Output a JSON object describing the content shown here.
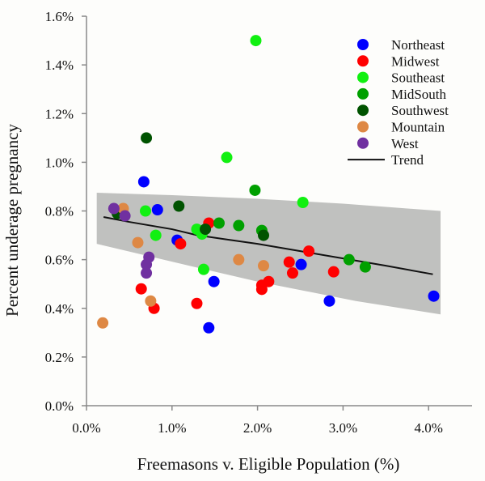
{
  "chart_data": {
    "type": "scatter",
    "title": "",
    "xlabel": "Freemasons v. Eligible Population (%)",
    "ylabel": "Percent underage pregnancy",
    "xlim": [
      0,
      4.4
    ],
    "ylim": [
      0,
      1.6
    ],
    "x_ticks": [
      0,
      1,
      2,
      3,
      4
    ],
    "x_tick_labels": [
      "0.0%",
      "1.0%",
      "2.0%",
      "3.0%",
      "4.0%"
    ],
    "y_ticks": [
      0,
      0.2,
      0.4,
      0.6,
      0.8,
      1.0,
      1.2,
      1.4,
      1.6
    ],
    "y_tick_labels": [
      "0.0%",
      "0.2%",
      "0.4%",
      "0.6%",
      "0.8%",
      "1.0%",
      "1.2%",
      "1.4%",
      "1.6%"
    ],
    "grid": false,
    "legend_position": "top-right",
    "series": [
      {
        "name": "Northeast",
        "color": "#0000ff",
        "points": [
          [
            0.67,
            0.92
          ],
          [
            0.83,
            0.805
          ],
          [
            1.06,
            0.68
          ],
          [
            1.49,
            0.51
          ],
          [
            1.43,
            0.32
          ],
          [
            2.51,
            0.58
          ],
          [
            2.84,
            0.43
          ],
          [
            4.06,
            0.45
          ]
        ]
      },
      {
        "name": "Midwest",
        "color": "#ff0000",
        "points": [
          [
            1.43,
            0.75
          ],
          [
            1.1,
            0.665
          ],
          [
            0.64,
            0.48
          ],
          [
            0.79,
            0.4
          ],
          [
            1.29,
            0.42
          ],
          [
            2.6,
            0.635
          ],
          [
            2.37,
            0.59
          ],
          [
            2.41,
            0.545
          ],
          [
            2.89,
            0.55
          ],
          [
            2.13,
            0.51
          ],
          [
            2.05,
            0.495
          ],
          [
            2.05,
            0.478
          ]
        ]
      },
      {
        "name": "Southeast",
        "color": "#11f011",
        "points": [
          [
            1.98,
            1.5
          ],
          [
            1.64,
            1.02
          ],
          [
            2.53,
            0.835
          ],
          [
            0.69,
            0.8
          ],
          [
            0.81,
            0.7
          ],
          [
            1.29,
            0.725
          ],
          [
            1.35,
            0.705
          ],
          [
            1.37,
            0.56
          ]
        ]
      },
      {
        "name": "MidSouth",
        "color": "#00a000",
        "points": [
          [
            1.97,
            0.885
          ],
          [
            1.55,
            0.75
          ],
          [
            1.78,
            0.74
          ],
          [
            2.05,
            0.72
          ],
          [
            3.07,
            0.6
          ],
          [
            3.26,
            0.57
          ]
        ]
      },
      {
        "name": "Southwest",
        "color": "#005300",
        "points": [
          [
            0.7,
            1.1
          ],
          [
            1.08,
            0.82
          ],
          [
            1.39,
            0.725
          ],
          [
            2.07,
            0.7
          ],
          [
            0.36,
            0.79
          ]
        ]
      },
      {
        "name": "Mountain",
        "color": "#de8844",
        "points": [
          [
            0.43,
            0.81
          ],
          [
            0.6,
            0.67
          ],
          [
            0.75,
            0.43
          ],
          [
            0.19,
            0.34
          ],
          [
            1.78,
            0.6
          ],
          [
            2.07,
            0.575
          ]
        ]
      },
      {
        "name": "West",
        "color": "#7030a0",
        "points": [
          [
            0.32,
            0.81
          ],
          [
            0.45,
            0.78
          ],
          [
            0.73,
            0.61
          ],
          [
            0.7,
            0.58
          ],
          [
            0.7,
            0.545
          ]
        ]
      }
    ],
    "trend": {
      "name": "Trend",
      "color": "#111111",
      "points": [
        [
          0.2,
          0.775
        ],
        [
          0.5,
          0.755
        ],
        [
          1.0,
          0.725
        ],
        [
          1.3,
          0.7
        ],
        [
          1.6,
          0.685
        ],
        [
          2.0,
          0.665
        ],
        [
          2.5,
          0.635
        ],
        [
          3.0,
          0.605
        ],
        [
          3.5,
          0.575
        ],
        [
          4.05,
          0.54
        ]
      ]
    },
    "confidence_band": {
      "color": "#c0c1bf",
      "upper": [
        [
          0.12,
          0.875
        ],
        [
          1.0,
          0.865
        ],
        [
          2.0,
          0.85
        ],
        [
          3.0,
          0.83
        ],
        [
          4.14,
          0.8
        ]
      ],
      "lower": [
        [
          0.12,
          0.665
        ],
        [
          1.26,
          0.57
        ],
        [
          2.0,
          0.51
        ],
        [
          3.15,
          0.43
        ],
        [
          4.14,
          0.375
        ]
      ]
    }
  }
}
